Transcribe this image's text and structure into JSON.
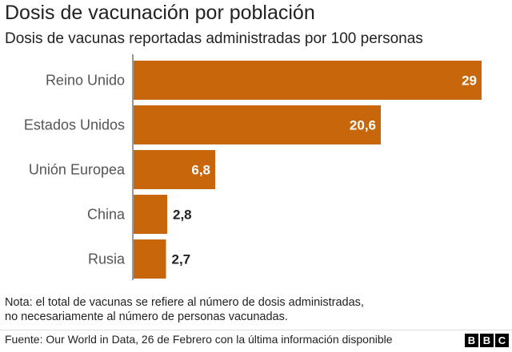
{
  "header": {
    "title": "Dosis de vacunación por población",
    "subtitle": "Dosis de vacunas reportadas administradas por 100 personas"
  },
  "chart_data": {
    "type": "bar",
    "orientation": "horizontal",
    "title": "Dosis de vacunación por población",
    "subtitle": "Dosis de vacunas reportadas administradas por 100 personas",
    "categories": [
      "Reino Unido",
      "Estados Unidos",
      "Unión Europea",
      "China",
      "Rusia"
    ],
    "values": [
      29,
      20.6,
      6.8,
      2.8,
      2.7
    ],
    "value_labels": [
      "29",
      "20,6",
      "6,8",
      "2,8",
      "2,7"
    ],
    "xlim": [
      0,
      29
    ],
    "grid": false,
    "bar_color": "#c8660c"
  },
  "footer": {
    "note_line1": "Nota: el total de vacunas se refiere al número de dosis administradas,",
    "note_line2": "no necesariamente al número de personas vacunadas.",
    "source": "Fuente: Our World in Data, 26 de Febrero con la última información disponible",
    "logo_letters": [
      "B",
      "B",
      "C"
    ]
  }
}
